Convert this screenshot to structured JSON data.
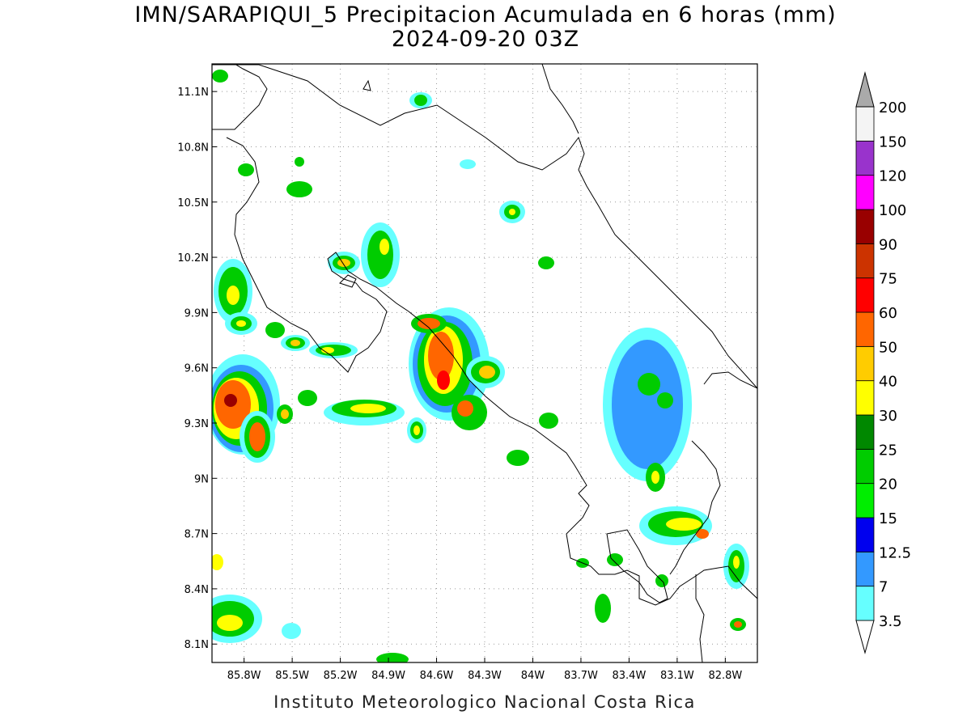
{
  "title": {
    "line1": "IMN/SARAPIQUI_5 Precipitacion Acumulada en 6 horas (mm)",
    "line2": "2024-09-20 03Z"
  },
  "footer": "Instituto Meteorologico Nacional Costa Rica",
  "map_data": {
    "type": "precipitation-map",
    "lon_range": [
      -86.0,
      -82.6
    ],
    "lat_range": [
      8.0,
      11.25
    ],
    "x_ticks": [
      "85.8W",
      "85.5W",
      "85.2W",
      "84.9W",
      "84.6W",
      "84.3W",
      "84W",
      "83.7W",
      "83.4W",
      "83.1W",
      "82.8W"
    ],
    "y_ticks": [
      "11.1N",
      "10.8N",
      "10.5N",
      "10.2N",
      "9.9N",
      "9.6N",
      "9.3N",
      "9N",
      "8.7N",
      "8.4N",
      "8.1N"
    ],
    "grid": "dotted"
  },
  "colorbar": {
    "levels": [
      "3.5",
      "7",
      "12.5",
      "15",
      "20",
      "25",
      "30",
      "40",
      "50",
      "60",
      "75",
      "90",
      "100",
      "120",
      "150",
      "200"
    ],
    "colors": [
      "#66ffff",
      "#3399ff",
      "#0000ee",
      "#00ee00",
      "#00cc00",
      "#008800",
      "#ffff00",
      "#ffcc00",
      "#ff6600",
      "#ff0000",
      "#cc3300",
      "#990000",
      "#ff00ff",
      "#9933cc",
      "#f4f4f4",
      "#aaaaaa"
    ]
  }
}
